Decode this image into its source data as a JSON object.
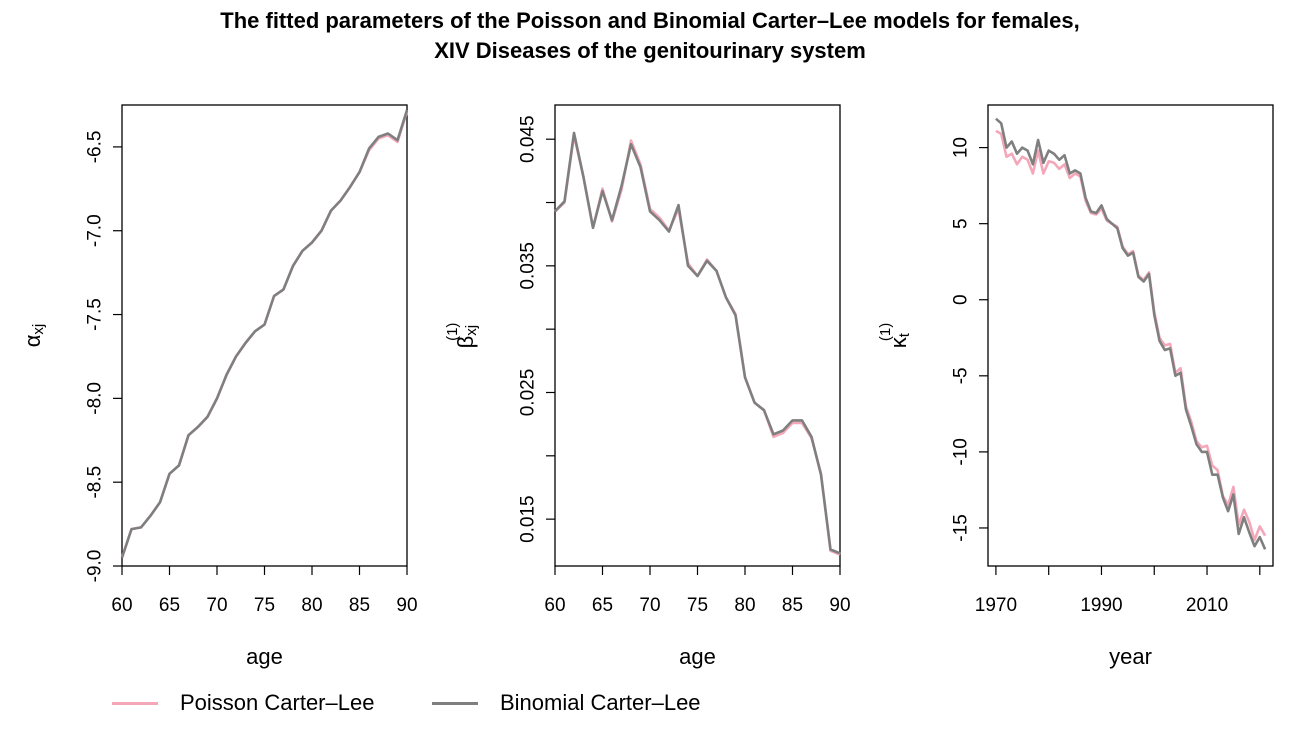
{
  "title": {
    "line1": "The fitted parameters of the Poisson and Binomial Carter–Lee models for females,",
    "line2": "XIV Diseases of the genitourinary system"
  },
  "legend": [
    {
      "label": "Poisson Carter–Lee",
      "color": "#f4a7b9"
    },
    {
      "label": "Binomial Carter–Lee",
      "color": "#7f7f7f"
    }
  ],
  "colors": {
    "poisson": "#f4a7b9",
    "binomial": "#7f7f7f"
  },
  "chart_data": [
    {
      "type": "line",
      "xlabel": "age",
      "ylabel": "α",
      "ylabel_sub": "xj",
      "ylabel_sup": "",
      "xlim": [
        60,
        90
      ],
      "ylim": [
        -9.0,
        -6.25
      ],
      "xticks": [
        "60",
        "65",
        "70",
        "75",
        "80",
        "85",
        "90"
      ],
      "yticks": [
        "-9.0",
        "-8.5",
        "-8.0",
        "-7.5",
        "-7.0",
        "-6.5"
      ],
      "x": [
        60,
        61,
        62,
        63,
        64,
        65,
        66,
        67,
        68,
        69,
        70,
        71,
        72,
        73,
        74,
        75,
        76,
        77,
        78,
        79,
        80,
        81,
        82,
        83,
        84,
        85,
        86,
        87,
        88,
        89,
        90
      ],
      "series": [
        {
          "name": "Poisson Carter–Lee",
          "values": [
            -8.95,
            -8.78,
            -8.77,
            -8.7,
            -8.62,
            -8.45,
            -8.4,
            -8.22,
            -8.17,
            -8.11,
            -8.0,
            -7.86,
            -7.75,
            -7.67,
            -7.6,
            -7.56,
            -7.39,
            -7.35,
            -7.21,
            -7.12,
            -7.07,
            -7.0,
            -6.88,
            -6.82,
            -6.74,
            -6.65,
            -6.52,
            -6.45,
            -6.43,
            -6.47,
            -6.29
          ]
        },
        {
          "name": "Binomial Carter–Lee",
          "values": [
            -8.95,
            -8.78,
            -8.77,
            -8.7,
            -8.62,
            -8.45,
            -8.4,
            -8.22,
            -8.17,
            -8.11,
            -8.0,
            -7.86,
            -7.75,
            -7.67,
            -7.6,
            -7.56,
            -7.39,
            -7.35,
            -7.21,
            -7.12,
            -7.07,
            -7.0,
            -6.88,
            -6.82,
            -6.74,
            -6.65,
            -6.51,
            -6.44,
            -6.42,
            -6.46,
            -6.28
          ]
        }
      ]
    },
    {
      "type": "line",
      "xlabel": "age",
      "ylabel": "β",
      "ylabel_sub": "xj",
      "ylabel_sup": "(1)",
      "xlim": [
        60,
        90
      ],
      "ylim": [
        0.0113,
        0.0477
      ],
      "xticks": [
        "60",
        "65",
        "70",
        "75",
        "80",
        "85",
        "90"
      ],
      "yticks": [
        "0.015",
        "0.025",
        "0.035",
        "0.045"
      ],
      "yticks_minor": [
        0.015,
        0.02,
        0.025,
        0.03,
        0.035,
        0.04,
        0.045
      ],
      "x": [
        60,
        61,
        62,
        63,
        64,
        65,
        66,
        67,
        68,
        69,
        70,
        71,
        72,
        73,
        74,
        75,
        76,
        77,
        78,
        79,
        80,
        81,
        82,
        83,
        84,
        85,
        86,
        87,
        88,
        89,
        90
      ],
      "series": [
        {
          "name": "Poisson Carter–Lee",
          "values": [
            0.0393,
            0.04,
            0.0453,
            0.042,
            0.038,
            0.0411,
            0.0385,
            0.041,
            0.0449,
            0.043,
            0.0395,
            0.0388,
            0.0378,
            0.0395,
            0.0352,
            0.0342,
            0.0355,
            0.0346,
            0.0325,
            0.0312,
            0.0262,
            0.0242,
            0.0236,
            0.0215,
            0.0218,
            0.0226,
            0.0226,
            0.0214,
            0.0186,
            0.0125,
            0.0122
          ]
        },
        {
          "name": "Binomial Carter–Lee",
          "values": [
            0.0393,
            0.0401,
            0.0455,
            0.042,
            0.038,
            0.0409,
            0.0386,
            0.0413,
            0.0446,
            0.0428,
            0.0393,
            0.0386,
            0.0377,
            0.0398,
            0.035,
            0.0342,
            0.0354,
            0.0346,
            0.0325,
            0.0311,
            0.0262,
            0.0242,
            0.0236,
            0.0217,
            0.022,
            0.0228,
            0.0228,
            0.0215,
            0.0185,
            0.0126,
            0.0123
          ]
        }
      ]
    },
    {
      "type": "line",
      "xlabel": "year",
      "ylabel": "κ",
      "ylabel_sub": "t",
      "ylabel_sup": "(1)",
      "xlim": [
        1968.5,
        2022.5
      ],
      "ylim": [
        -17.5,
        12.8
      ],
      "xticks": [
        "1970",
        "1990",
        "2010"
      ],
      "xticks_minor": [
        1970,
        1980,
        1990,
        2000,
        2010,
        2020
      ],
      "yticks": [
        "-15",
        "-10",
        "-5",
        "0",
        "5",
        "10"
      ],
      "x": [
        1970,
        1971,
        1972,
        1973,
        1974,
        1975,
        1976,
        1977,
        1978,
        1979,
        1980,
        1981,
        1982,
        1983,
        1984,
        1985,
        1986,
        1987,
        1988,
        1989,
        1990,
        1991,
        1992,
        1993,
        1994,
        1995,
        1996,
        1997,
        1998,
        1999,
        2000,
        2001,
        2002,
        2003,
        2004,
        2005,
        2006,
        2007,
        2008,
        2009,
        2010,
        2011,
        2012,
        2013,
        2014,
        2015,
        2016,
        2017,
        2018,
        2019,
        2020,
        2021
      ],
      "series": [
        {
          "name": "Poisson Carter–Lee",
          "values": [
            11.1,
            10.9,
            9.4,
            9.6,
            8.9,
            9.4,
            9.2,
            8.3,
            9.8,
            8.3,
            9.1,
            9.0,
            8.6,
            8.9,
            8.0,
            8.3,
            8.1,
            6.5,
            5.7,
            5.6,
            6.0,
            5.2,
            5.0,
            4.8,
            3.5,
            3.0,
            3.2,
            1.6,
            1.3,
            1.8,
            -0.8,
            -2.5,
            -3.0,
            -2.9,
            -4.8,
            -4.5,
            -7.0,
            -8.0,
            -9.3,
            -9.7,
            -9.6,
            -10.9,
            -11.2,
            -12.9,
            -13.5,
            -12.3,
            -14.8,
            -13.8,
            -14.6,
            -15.8,
            -14.9,
            -15.5
          ]
        },
        {
          "name": "Binomial Carter–Lee",
          "values": [
            11.9,
            11.6,
            10.0,
            10.4,
            9.6,
            10.0,
            9.8,
            8.9,
            10.5,
            9.0,
            9.8,
            9.6,
            9.2,
            9.5,
            8.3,
            8.5,
            8.3,
            6.7,
            5.8,
            5.7,
            6.2,
            5.3,
            5.0,
            4.7,
            3.4,
            2.9,
            3.1,
            1.5,
            1.2,
            1.7,
            -1.0,
            -2.7,
            -3.3,
            -3.2,
            -5.0,
            -4.8,
            -7.2,
            -8.3,
            -9.5,
            -10.0,
            -10.0,
            -11.5,
            -11.5,
            -13.0,
            -13.9,
            -12.8,
            -15.4,
            -14.3,
            -15.3,
            -16.2,
            -15.6,
            -16.4
          ]
        }
      ]
    }
  ]
}
